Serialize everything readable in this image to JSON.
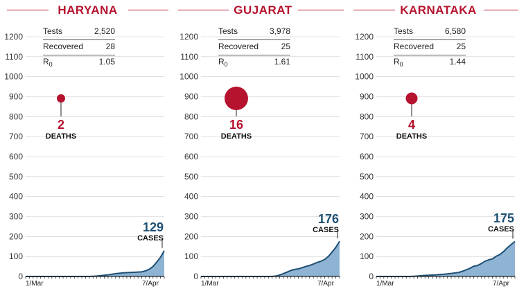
{
  "colors": {
    "accent": "#b5132e",
    "cases_fill": "#8fb3d3",
    "cases_line": "#1d4f73",
    "grid": "#cccccc"
  },
  "labels": {
    "tests": "Tests",
    "recovered": "Recovered",
    "r0_main": "R",
    "r0_sub": "0",
    "deaths": "DEATHS",
    "cases": "CASES"
  },
  "chart_data": [
    {
      "type": "area",
      "title": "HARYANA",
      "x_start_label": "1/Mar",
      "x_end_label": "7/Apr",
      "ylim": [
        0,
        1200
      ],
      "yticks": [
        0,
        100,
        200,
        300,
        400,
        500,
        600,
        700,
        800,
        900,
        1000,
        1100,
        1200
      ],
      "days": 38,
      "series": [
        {
          "name": "Cases",
          "values": [
            0,
            0,
            0,
            0,
            0,
            0,
            0,
            0,
            0,
            0,
            0,
            0,
            0,
            0,
            0,
            0,
            0,
            0,
            1,
            2,
            4,
            6,
            8,
            11,
            14,
            16,
            18,
            19,
            20,
            21,
            22,
            23,
            28,
            36,
            50,
            72,
            96,
            129
          ]
        }
      ],
      "stats": {
        "tests": "2,520",
        "recovered": "28",
        "r0": "1.05"
      },
      "deaths": "2",
      "deaths_value": 2,
      "cases": "129"
    },
    {
      "type": "area",
      "title": "GUJARAT",
      "x_start_label": "1/Mar",
      "x_end_label": "7/Apr",
      "ylim": [
        0,
        1200
      ],
      "yticks": [
        0,
        100,
        200,
        300,
        400,
        500,
        600,
        700,
        800,
        900,
        1000,
        1100,
        1200
      ],
      "days": 38,
      "series": [
        {
          "name": "Cases",
          "values": [
            0,
            0,
            0,
            0,
            0,
            0,
            0,
            0,
            0,
            0,
            0,
            0,
            0,
            0,
            0,
            0,
            0,
            0,
            0,
            0,
            2,
            7,
            14,
            22,
            30,
            35,
            38,
            44,
            50,
            55,
            62,
            70,
            76,
            85,
            100,
            122,
            146,
            176
          ]
        }
      ],
      "stats": {
        "tests": "3,978",
        "recovered": "25",
        "r0": "1.61"
      },
      "deaths": "16",
      "deaths_value": 16,
      "cases": "176"
    },
    {
      "type": "area",
      "title": "KARNATAKA",
      "x_start_label": "1/Mar",
      "x_end_label": "7/Apr",
      "ylim": [
        0,
        1200
      ],
      "yticks": [
        0,
        100,
        200,
        300,
        400,
        500,
        600,
        700,
        800,
        900,
        1000,
        1100,
        1200
      ],
      "days": 38,
      "series": [
        {
          "name": "Cases",
          "values": [
            0,
            0,
            0,
            0,
            0,
            0,
            0,
            0,
            0,
            0,
            1,
            2,
            4,
            5,
            6,
            7,
            8,
            10,
            11,
            13,
            15,
            18,
            20,
            26,
            33,
            41,
            51,
            55,
            64,
            76,
            83,
            88,
            101,
            110,
            125,
            144,
            160,
            175
          ]
        }
      ],
      "stats": {
        "tests": "6,580",
        "recovered": "25",
        "r0": "1.44"
      },
      "deaths": "4",
      "deaths_value": 4,
      "cases": "175"
    }
  ]
}
